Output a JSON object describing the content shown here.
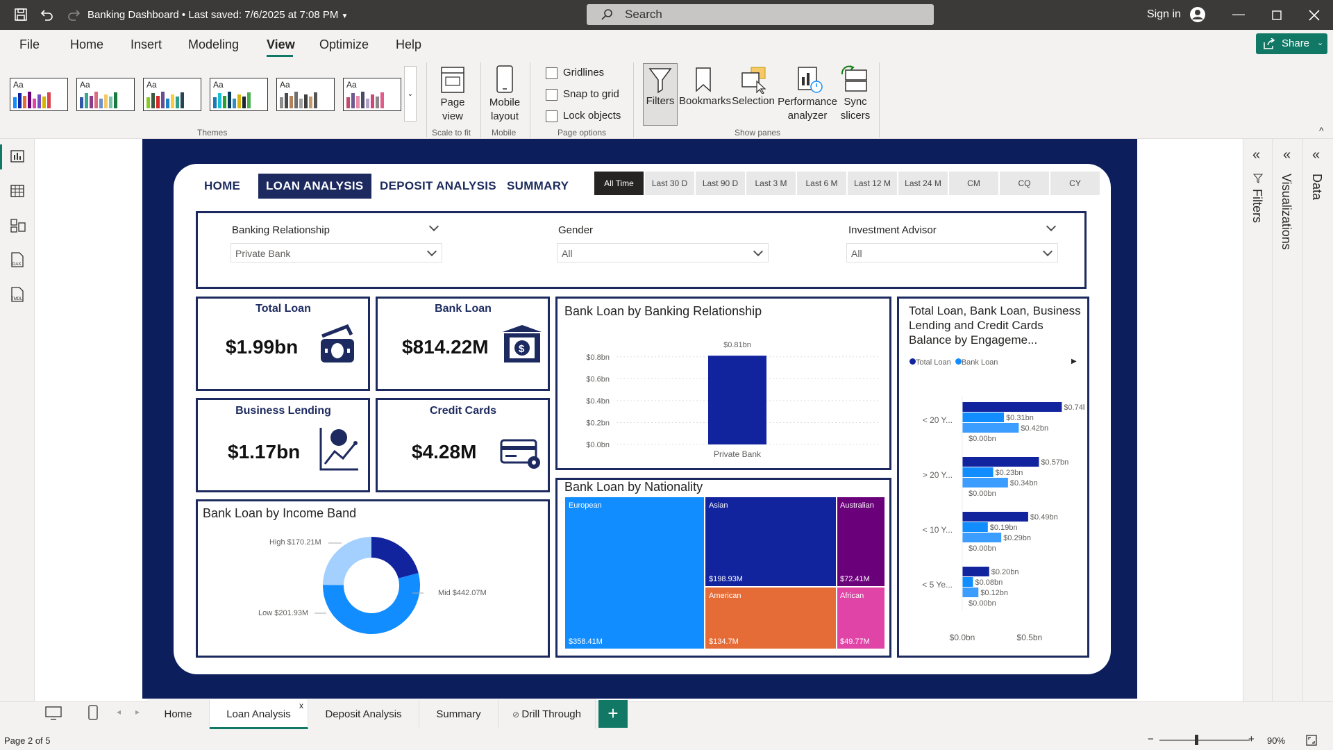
{
  "window": {
    "title": "Banking Dashboard",
    "saved": "Last saved: 7/6/2025 at 7:08 PM",
    "search_placeholder": "Search",
    "sign_in": "Sign in"
  },
  "menu": {
    "items": [
      "File",
      "Home",
      "Insert",
      "Modeling",
      "View",
      "Optimize",
      "Help"
    ],
    "active": "View",
    "share": "Share"
  },
  "ribbon": {
    "groups": {
      "themes": "Themes",
      "scale": "Scale to fit",
      "mobile": "Mobile",
      "page_options": "Page options",
      "show_panes": "Show panes"
    },
    "page_view": "Page\nview",
    "mobile_layout": "Mobile\nlayout",
    "options": [
      "Gridlines",
      "Snap to grid",
      "Lock objects"
    ],
    "panes": [
      "Filters",
      "Bookmarks",
      "Selection",
      "Performance\nanalyzer",
      "Sync\nslicers"
    ],
    "theme_label": "Aa"
  },
  "report": {
    "nav": [
      "HOME",
      "LOAN ANALYSIS",
      "DEPOSIT ANALYSIS",
      "SUMMARY"
    ],
    "time_buttons": [
      "All Time",
      "Last 30 D",
      "Last 90 D",
      "Last 3 M",
      "Last 6 M",
      "Last 12 M",
      "Last 24 M",
      "CM",
      "CQ",
      "CY"
    ],
    "filters": [
      {
        "label": "Banking Relationship",
        "value": "Private Bank"
      },
      {
        "label": "Gender",
        "value": "All"
      },
      {
        "label": "Investment Advisor",
        "value": "All"
      }
    ],
    "kpis": [
      {
        "title": "Total Loan",
        "value": "$1.99bn"
      },
      {
        "title": "Bank Loan",
        "value": "$814.22M"
      },
      {
        "title": "Business Lending",
        "value": "$1.17bn"
      },
      {
        "title": "Credit Cards",
        "value": "$4.28M"
      }
    ],
    "donut_title": "Bank Loan by Income Band",
    "bar_title": "Bank Loan by Banking Relationship",
    "treemap_title": "Bank Loan by Nationality",
    "hbar_title": "Total Loan, Bank Loan, Business Lending and Credit Cards Balance by Engageme...",
    "hbar_legend": [
      "Total Loan",
      "Bank Loan"
    ]
  },
  "chart_data": [
    {
      "type": "bar",
      "title": "Bank Loan by Banking Relationship",
      "categories": [
        "Private Bank"
      ],
      "values": [
        0.81
      ],
      "value_labels": [
        "$0.81bn"
      ],
      "ylim": [
        0,
        0.9
      ],
      "yticks": [
        "$0.0bn",
        "$0.2bn",
        "$0.4bn",
        "$0.6bn",
        "$0.8bn"
      ]
    },
    {
      "type": "pie",
      "title": "Bank Loan by Income Band",
      "labels": [
        "High",
        "Mid",
        "Low"
      ],
      "values": [
        170.21,
        442.07,
        201.93
      ],
      "value_labels": [
        "High $170.21M",
        "Mid $442.07M",
        "Low $201.93M"
      ],
      "colors": [
        "#12239e",
        "#118dff",
        "#a3d0ff"
      ]
    },
    {
      "type": "treemap",
      "title": "Bank Loan by Nationality",
      "labels": [
        "European",
        "Asian",
        "American",
        "Australian",
        "African"
      ],
      "values": [
        358.41,
        198.93,
        134.7,
        72.41,
        49.77
      ],
      "value_labels": [
        "$358.41M",
        "$198.93M",
        "$134.7M",
        "$72.41M",
        "$49.77M"
      ],
      "colors": [
        "#118dff",
        "#12239e",
        "#e66c37",
        "#6b007b",
        "#e044a7"
      ]
    },
    {
      "type": "bar",
      "orientation": "horizontal",
      "title": "Total Loan, Bank Loan, Business Lending and Credit Cards Balance by Engageme...",
      "categories": [
        "< 20 Y...",
        "> 20 Y...",
        "< 10 Y...",
        "< 5 Ye..."
      ],
      "series": [
        {
          "name": "Total Loan",
          "values": [
            0.74,
            0.57,
            0.49,
            0.2
          ],
          "labels": [
            "$0.74bn",
            "$0.57bn",
            "$0.49bn",
            "$0.20bn"
          ]
        },
        {
          "name": "Bank Loan",
          "values": [
            0.31,
            0.23,
            0.19,
            0.08
          ],
          "labels": [
            "$0.31bn",
            "$0.23bn",
            "$0.19bn",
            "$0.08bn"
          ]
        },
        {
          "name": "Business Lending",
          "values": [
            0.42,
            0.34,
            0.29,
            0.12
          ],
          "labels": [
            "$0.42bn",
            "$0.34bn",
            "$0.29bn",
            "$0.12bn"
          ]
        },
        {
          "name": "Credit Cards",
          "values": [
            0.0,
            0.0,
            0.0,
            0.0
          ],
          "labels": [
            "$0.00bn",
            "$0.00bn",
            "$0.00bn",
            "$0.00bn"
          ]
        }
      ],
      "xticks": [
        "$0.0bn",
        "$0.5bn"
      ],
      "xlim": [
        0,
        0.8
      ]
    }
  ],
  "panes": {
    "filters": "Filters",
    "visualizations": "Visualizations",
    "data": "Data"
  },
  "pages": {
    "tabs": [
      "Home",
      "Loan Analysis",
      "Deposit Analysis",
      "Summary",
      "Drill Through"
    ],
    "active": "Loan Analysis",
    "add": "+",
    "close": "x"
  },
  "status": {
    "page": "Page 2 of 5",
    "zoom": "90%"
  },
  "colors": {
    "navy": "#0c1f5c",
    "dark": "#12239e",
    "blue": "#118dff",
    "light": "#a3d0ff",
    "accent": "#117865"
  }
}
